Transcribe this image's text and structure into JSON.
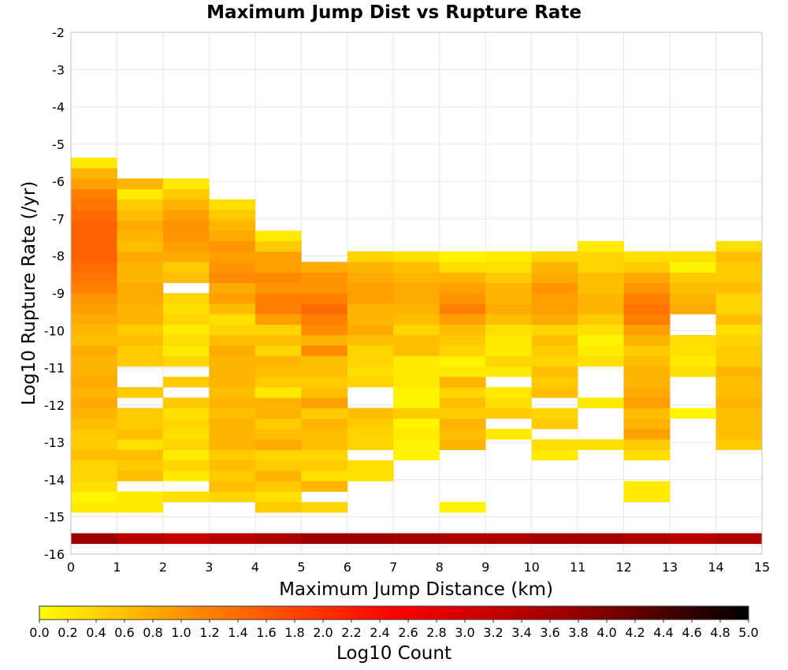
{
  "chart_data": {
    "type": "heatmap",
    "title": "Maximum Jump Dist vs Rupture Rate",
    "xlabel": "Maximum Jump Distance (km)",
    "ylabel": "Log10 Rupture Rate (/yr)",
    "xlim": [
      0,
      15
    ],
    "ylim": [
      -16,
      -2
    ],
    "grid": true,
    "x_ticks": [
      "0",
      "1",
      "2",
      "3",
      "4",
      "5",
      "6",
      "7",
      "8",
      "9",
      "10",
      "11",
      "12",
      "13",
      "14",
      "15"
    ],
    "y_ticks": [
      "-2",
      "-3",
      "-4",
      "-5",
      "-6",
      "-7",
      "-8",
      "-9",
      "-10",
      "-11",
      "-12",
      "-13",
      "-14",
      "-15",
      "-16"
    ],
    "x_bin_width": 1,
    "y_bin_height": 0.28,
    "y_bin_start": -16,
    "colorbar": {
      "label": "Log10 Count",
      "range": [
        0,
        5
      ],
      "ticks": [
        "0.0",
        "0.2",
        "0.4",
        "0.6",
        "0.8",
        "1.0",
        "1.2",
        "1.4",
        "1.6",
        "1.8",
        "2.0",
        "2.2",
        "2.4",
        "2.6",
        "2.8",
        "3.0",
        "3.2",
        "3.4",
        "3.6",
        "3.8",
        "4.0",
        "4.2",
        "4.4",
        "4.6",
        "4.8",
        "5.0"
      ],
      "colors": [
        "#ffff00",
        "#ff7a00",
        "#ff0000",
        "#990000",
        "#000000"
      ]
    },
    "columns": [
      {
        "x": 0,
        "bins": {
          "1": 3.7,
          "4": 0.2,
          "5": 0.1,
          "6": 0.3,
          "7": 0.4,
          "8": 0.4,
          "9": 0.6,
          "10": 0.5,
          "11": 0.5,
          "12": 0.6,
          "13": 0.7,
          "14": 0.8,
          "15": 0.7,
          "16": 0.8,
          "17": 0.7,
          "18": 0.7,
          "19": 0.8,
          "20": 0.6,
          "21": 0.7,
          "22": 0.8,
          "23": 0.9,
          "24": 1.0,
          "25": 1.2,
          "26": 1.3,
          "27": 1.4,
          "28": 1.5,
          "29": 1.5,
          "30": 1.5,
          "31": 1.5,
          "32": 1.4,
          "33": 1.3,
          "34": 1.2,
          "35": 0.9,
          "36": 0.7,
          "37": 0.2
        }
      },
      {
        "x": 1,
        "bins": {
          "1": 3.4,
          "4": 0.2,
          "5": 0.2,
          "7": 0.6,
          "8": 0.5,
          "9": 0.6,
          "10": 0.3,
          "11": 0.6,
          "12": 0.5,
          "13": 0.5,
          "15": 0.5,
          "18": 0.5,
          "19": 0.5,
          "20": 0.6,
          "21": 0.5,
          "22": 0.7,
          "23": 0.7,
          "24": 0.8,
          "25": 0.8,
          "26": 0.7,
          "27": 0.7,
          "28": 0.8,
          "29": 0.6,
          "30": 0.7,
          "31": 0.8,
          "32": 0.6,
          "33": 0.5,
          "34": 0.2,
          "35": 0.7
        }
      },
      {
        "x": 2,
        "bins": {
          "1": 3.2,
          "5": 0.3,
          "7": 0.2,
          "8": 0.4,
          "9": 0.2,
          "10": 0.4,
          "11": 0.3,
          "12": 0.4,
          "13": 0.3,
          "14": 0.5,
          "16": 0.5,
          "18": 0.4,
          "19": 0.2,
          "20": 0.3,
          "21": 0.2,
          "22": 0.4,
          "23": 0.3,
          "24": 0.4,
          "26": 0.6,
          "27": 0.5,
          "28": 0.8,
          "29": 0.9,
          "30": 1.0,
          "31": 1.0,
          "32": 0.9,
          "33": 0.7,
          "34": 0.5,
          "35": 0.2
        }
      },
      {
        "x": 3,
        "bins": {
          "1": 3.4,
          "5": 0.4,
          "6": 0.6,
          "7": 0.5,
          "8": 0.6,
          "9": 0.5,
          "10": 0.7,
          "11": 0.7,
          "12": 0.7,
          "13": 0.6,
          "14": 0.7,
          "15": 0.6,
          "16": 0.7,
          "17": 0.7,
          "18": 0.7,
          "19": 0.8,
          "20": 0.6,
          "21": 0.4,
          "22": 0.3,
          "23": 0.6,
          "24": 0.9,
          "25": 0.8,
          "26": 1.1,
          "27": 1.0,
          "28": 0.9,
          "29": 1.0,
          "30": 0.8,
          "31": 0.7,
          "32": 0.5,
          "33": 0.3
        }
      },
      {
        "x": 4,
        "bins": {
          "1": 3.5,
          "4": 0.5,
          "5": 0.3,
          "6": 0.5,
          "7": 0.7,
          "8": 0.5,
          "9": 0.4,
          "10": 0.8,
          "11": 0.6,
          "12": 0.5,
          "13": 0.7,
          "14": 0.7,
          "15": 0.2,
          "16": 0.5,
          "17": 0.6,
          "18": 0.7,
          "19": 0.4,
          "20": 0.6,
          "21": 0.4,
          "22": 0.9,
          "23": 1.2,
          "24": 1.2,
          "25": 1.0,
          "26": 1.1,
          "27": 0.9,
          "28": 0.9,
          "29": 0.5,
          "30": 0.2
        }
      },
      {
        "x": 5,
        "bins": {
          "1": 3.7,
          "4": 0.4,
          "6": 0.7,
          "7": 0.3,
          "8": 0.5,
          "9": 0.4,
          "10": 0.6,
          "11": 0.6,
          "12": 0.7,
          "13": 0.5,
          "14": 0.9,
          "15": 0.6,
          "16": 0.5,
          "17": 0.6,
          "18": 0.6,
          "19": 1.1,
          "20": 0.7,
          "21": 1.1,
          "22": 1.2,
          "23": 1.4,
          "24": 1.2,
          "25": 1.0,
          "26": 1.0,
          "27": 0.8
        }
      },
      {
        "x": 6,
        "bins": {
          "1": 3.7,
          "7": 0.3,
          "8": 0.3,
          "10": 0.4,
          "11": 0.4,
          "12": 0.5,
          "13": 0.6,
          "16": 0.4,
          "17": 0.3,
          "18": 0.4,
          "19": 0.4,
          "20": 0.6,
          "21": 0.8,
          "22": 0.7,
          "23": 0.7,
          "24": 0.9,
          "25": 0.9,
          "26": 0.8,
          "27": 0.7,
          "28": 0.4
        }
      },
      {
        "x": 7,
        "bins": {
          "1": 3.6,
          "9": 0.1,
          "10": 0.1,
          "11": 0.2,
          "12": 0.1,
          "13": 0.5,
          "14": 0.1,
          "15": 0.1,
          "16": 0.2,
          "17": 0.2,
          "18": 0.2,
          "19": 0.6,
          "20": 0.6,
          "21": 0.4,
          "22": 0.6,
          "23": 0.7,
          "24": 0.8,
          "25": 0.8,
          "26": 0.7,
          "27": 0.6,
          "28": 0.3
        }
      },
      {
        "x": 8,
        "bins": {
          "1": 3.5,
          "4": 0.1,
          "10": 0.7,
          "11": 0.6,
          "12": 0.7,
          "13": 0.5,
          "14": 0.6,
          "15": 0.4,
          "16": 0.7,
          "17": 0.2,
          "18": 0.1,
          "19": 0.4,
          "20": 0.5,
          "21": 0.6,
          "22": 0.9,
          "23": 1.2,
          "24": 1.0,
          "25": 0.9,
          "26": 0.7,
          "27": 0.3,
          "28": 0.1
        }
      },
      {
        "x": 9,
        "bins": {
          "1": 3.5,
          "11": 0.2,
          "13": 0.5,
          "14": 0.3,
          "15": 0.2,
          "17": 0.2,
          "18": 0.4,
          "19": 0.2,
          "20": 0.2,
          "21": 0.3,
          "22": 0.6,
          "23": 0.8,
          "24": 0.7,
          "25": 0.7,
          "26": 0.5,
          "27": 0.3,
          "28": 0.2
        }
      },
      {
        "x": 10,
        "bins": {
          "1": 3.6,
          "9": 0.2,
          "10": 0.3,
          "12": 0.5,
          "13": 0.4,
          "15": 0.6,
          "16": 0.5,
          "17": 0.6,
          "18": 0.4,
          "19": 0.5,
          "20": 0.6,
          "21": 0.4,
          "22": 0.8,
          "23": 0.9,
          "24": 0.9,
          "25": 1.0,
          "26": 0.8,
          "27": 0.7,
          "28": 0.4
        }
      },
      {
        "x": 11,
        "bins": {
          "1": 3.6,
          "10": 0.3,
          "14": 0.2,
          "18": 0.3,
          "19": 0.2,
          "20": 0.1,
          "21": 0.3,
          "22": 0.5,
          "23": 0.7,
          "24": 0.7,
          "25": 0.6,
          "26": 0.6,
          "27": 0.4,
          "28": 0.4,
          "29": 0.2
        }
      },
      {
        "x": 12,
        "bins": {
          "1": 3.5,
          "5": 0.2,
          "6": 0.2,
          "9": 0.3,
          "10": 0.5,
          "11": 0.9,
          "12": 0.7,
          "13": 0.6,
          "14": 0.9,
          "15": 0.8,
          "16": 0.7,
          "17": 0.7,
          "18": 0.6,
          "19": 0.5,
          "20": 0.7,
          "21": 0.9,
          "22": 1.2,
          "23": 1.3,
          "24": 1.2,
          "25": 1.0,
          "26": 0.8,
          "27": 0.5,
          "28": 0.3
        }
      },
      {
        "x": 13,
        "bins": {
          "1": 3.4,
          "13": 0.1,
          "17": 0.3,
          "18": 0.2,
          "19": 0.3,
          "20": 0.3,
          "23": 0.8,
          "24": 0.7,
          "25": 0.6,
          "26": 0.5,
          "27": 0.1,
          "28": 0.3
        }
      },
      {
        "x": 14,
        "bins": {
          "1": 3.5,
          "10": 0.5,
          "11": 0.6,
          "12": 0.6,
          "13": 0.6,
          "14": 0.7,
          "15": 0.6,
          "16": 0.6,
          "17": 0.7,
          "18": 0.5,
          "19": 0.5,
          "20": 0.4,
          "21": 0.3,
          "22": 0.6,
          "23": 0.4,
          "24": 0.4,
          "25": 0.6,
          "26": 0.5,
          "27": 0.5,
          "28": 0.6,
          "29": 0.3
        }
      }
    ]
  }
}
